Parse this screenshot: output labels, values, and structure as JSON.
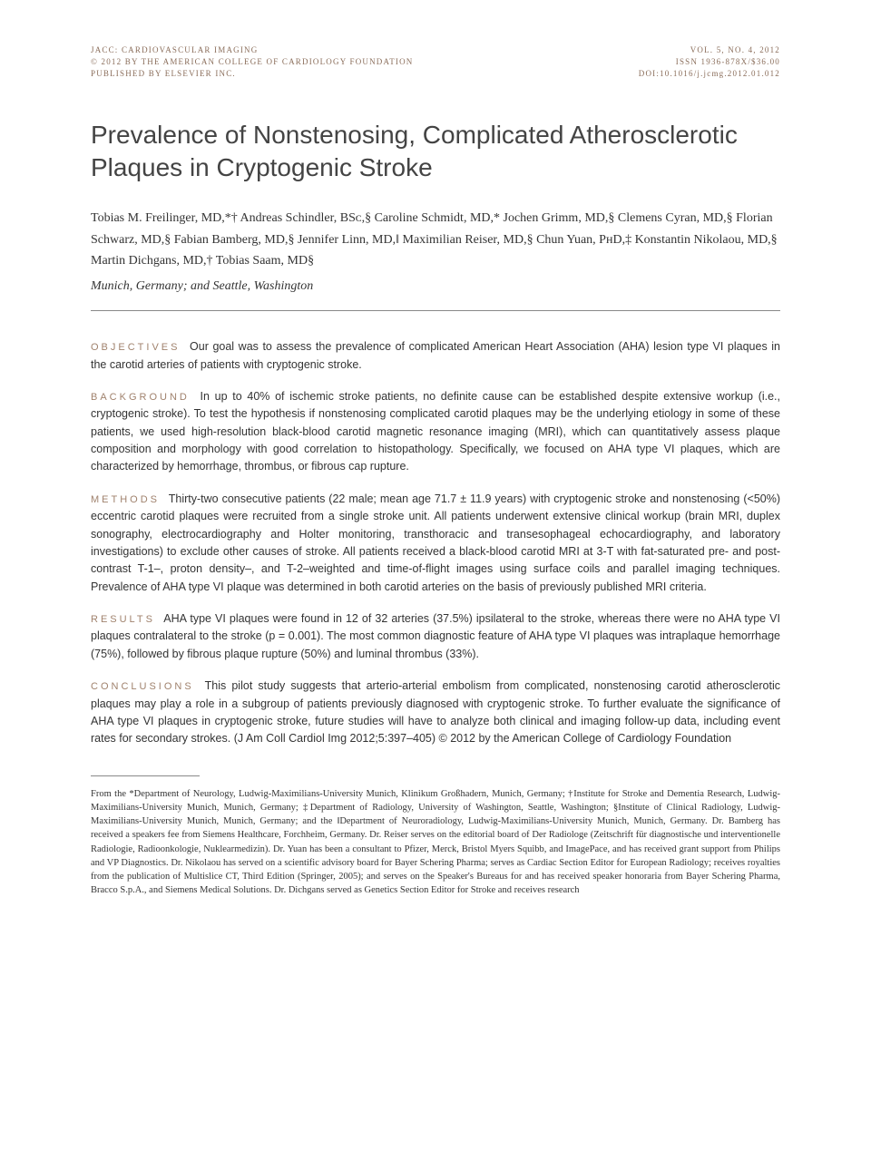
{
  "header": {
    "journal": "JACC: CARDIOVASCULAR IMAGING",
    "volume": "VOL. 5, NO. 4, 2012",
    "copyright": "© 2012 BY THE AMERICAN COLLEGE OF CARDIOLOGY FOUNDATION",
    "issn": "ISSN 1936-878X/$36.00",
    "publisher": "PUBLISHED BY ELSEVIER INC.",
    "doi": "DOI:10.1016/j.jcmg.2012.01.012"
  },
  "title": "Prevalence of Nonstenosing, Complicated Atherosclerotic Plaques in Cryptogenic Stroke",
  "authors": "Tobias M. Freilinger, MD,*† Andreas Schindler, BSᴄ,§ Caroline Schmidt, MD,* Jochen Grimm, MD,§ Clemens Cyran, MD,§ Florian Schwarz, MD,§ Fabian Bamberg, MD,§ Jennifer Linn, MD,‖ Maximilian Reiser, MD,§ Chun Yuan, PʜD,‡ Konstantin Nikolaou, MD,§ Martin Dichgans, MD,† Tobias Saam, MD§",
  "affiliations_loc": "Munich, Germany; and Seattle, Washington",
  "abstract": {
    "objectives": {
      "label": "OBJECTIVES",
      "text": "Our goal was to assess the prevalence of complicated American Heart Association (AHA) lesion type VI plaques in the carotid arteries of patients with cryptogenic stroke."
    },
    "background": {
      "label": "BACKGROUND",
      "text": "In up to 40% of ischemic stroke patients, no definite cause can be established despite extensive workup (i.e., cryptogenic stroke). To test the hypothesis if nonstenosing complicated carotid plaques may be the underlying etiology in some of these patients, we used high-resolution black-blood carotid magnetic resonance imaging (MRI), which can quantitatively assess plaque composition and morphology with good correlation to histopathology. Specifically, we focused on AHA type VI plaques, which are characterized by hemorrhage, thrombus, or fibrous cap rupture."
    },
    "methods": {
      "label": "METHODS",
      "text": "Thirty-two consecutive patients (22 male; mean age 71.7 ± 11.9 years) with cryptogenic stroke and nonstenosing (<50%) eccentric carotid plaques were recruited from a single stroke unit. All patients underwent extensive clinical workup (brain MRI, duplex sonography, electrocardiography and Holter monitoring, transthoracic and transesophageal echocardiography, and laboratory investigations) to exclude other causes of stroke. All patients received a black-blood carotid MRI at 3-T with fat-saturated pre- and post-contrast T-1–, proton density–, and T-2–weighted and time-of-flight images using surface coils and parallel imaging techniques. Prevalence of AHA type VI plaque was determined in both carotid arteries on the basis of previously published MRI criteria."
    },
    "results": {
      "label": "RESULTS",
      "text": "AHA type VI plaques were found in 12 of 32 arteries (37.5%) ipsilateral to the stroke, whereas there were no AHA type VI plaques contralateral to the stroke (p = 0.001). The most common diagnostic feature of AHA type VI plaques was intraplaque hemorrhage (75%), followed by fibrous plaque rupture (50%) and luminal thrombus (33%)."
    },
    "conclusions": {
      "label": "CONCLUSIONS",
      "text": "This pilot study suggests that arterio-arterial embolism from complicated, nonstenosing carotid atherosclerotic plaques may play a role in a subgroup of patients previously diagnosed with cryptogenic stroke. To further evaluate the significance of AHA type VI plaques in cryptogenic stroke, future studies will have to analyze both clinical and imaging follow-up data, including event rates for secondary strokes.   (J Am Coll Cardiol Img 2012;5:397–405) © 2012 by the American College of Cardiology Foundation"
    }
  },
  "footnote": "From the *Department of Neurology, Ludwig-Maximilians-University Munich, Klinikum Großhadern, Munich, Germany; †Institute for Stroke and Dementia Research, Ludwig-Maximilians-University Munich, Munich, Germany; ‡Department of Radiology, University of Washington, Seattle, Washington; §Institute of Clinical Radiology, Ludwig-Maximilians-University Munich, Munich, Germany; and the ‖Department of Neuroradiology, Ludwig-Maximilians-University Munich, Munich, Germany. Dr. Bamberg has received a speakers fee from Siemens Healthcare, Forchheim, Germany. Dr. Reiser serves on the editorial board of Der Radiologe (Zeitschrift für diagnostische und interventionelle Radiologie, Radioonkologie, Nuklearmedizin). Dr. Yuan has been a consultant to Pfizer, Merck, Bristol Myers Squibb, and ImagePace, and has received grant support from Philips and VP Diagnostics. Dr. Nikolaou has served on a scientific advisory board for Bayer Schering Pharma; serves as Cardiac Section Editor for European Radiology; receives royalties from the publication of Multislice CT, Third Edition (Springer, 2005); and serves on the Speaker's Bureaus for and has received speaker honoraria from Bayer Schering Pharma, Bracco S.p.A., and Siemens Medical Solutions. Dr. Dichgans served as Genetics Section Editor for Stroke and receives research",
  "colors": {
    "section_label": "#a0826d",
    "header_text": "#8a6d5a",
    "body_text": "#333333",
    "background": "#ffffff"
  },
  "typography": {
    "title_fontsize": 28,
    "body_fontsize": 12.5,
    "header_fontsize": 9,
    "footnote_fontsize": 10.5,
    "author_fontsize": 14
  }
}
